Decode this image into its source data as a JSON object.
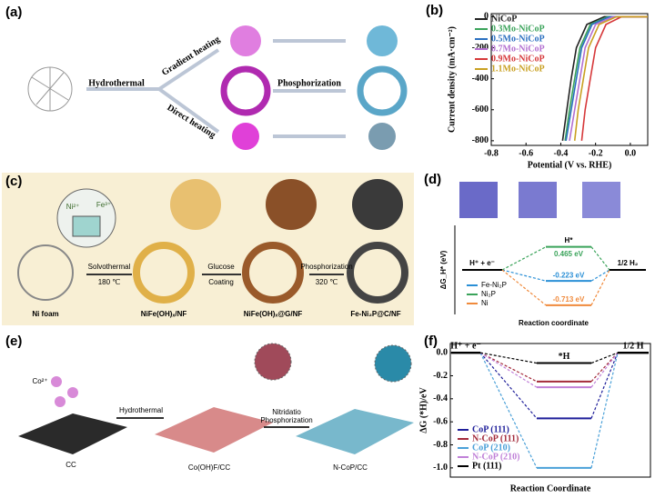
{
  "panels": {
    "a": {
      "label": "(a)",
      "step1": "Hydrothermal",
      "upper": "Gradient heating",
      "lower": "Direct heating",
      "step2": "Phosphorization"
    },
    "c": {
      "label": "(c)",
      "ion1": "Ni²⁺",
      "ion2": "Fe³⁺",
      "step1": "Solvothermal",
      "temp1": "180 ℃",
      "step2a": "Glucose",
      "step2b": "Coating",
      "step3": "Phosphorization",
      "temp3": "320 ℃",
      "names": [
        "Ni foam",
        "NiFe(OH)ₓ/NF",
        "NiFe(OH)ₓ@G/NF",
        "Fe-Ni₂P@C/NF"
      ]
    },
    "e": {
      "label": "(e)",
      "ion": "Co²⁺",
      "step1": "Hydrothermal",
      "step2a": "Nitridatio",
      "step2b": "Phosphorization",
      "names": [
        "CC",
        "Co(OH)F/CC",
        "N-CoP/CC"
      ]
    }
  },
  "chart_data": [
    {
      "type": "line",
      "panel_label": "(b)",
      "x_label": "Potential (V vs. RHE)",
      "y_label": "Current density (mA·cm⁻²)",
      "xlim": [
        -0.8,
        0.1
      ],
      "xticks": [
        -0.8,
        -0.6,
        -0.4,
        -0.2,
        {
          "value": 0,
          "label": "0.0"
        }
      ],
      "ylim": [
        -830,
        20
      ],
      "yticks": [
        0,
        -200,
        -400,
        -600,
        -800
      ],
      "legend": "upper left",
      "series": [
        {
          "name": "NiCoP",
          "color": "#222222",
          "x": [
            0.1,
            -0.15,
            -0.25,
            -0.31,
            -0.34,
            -0.365,
            -0.39
          ],
          "values": [
            0,
            0,
            -50,
            -200,
            -400,
            -600,
            -800
          ]
        },
        {
          "name": "0.3Mo-NiCoP",
          "color": "#3aa35a",
          "x": [
            0.1,
            -0.13,
            -0.23,
            -0.29,
            -0.32,
            -0.35,
            -0.375
          ],
          "values": [
            0,
            0,
            -50,
            -200,
            -400,
            -600,
            -800
          ]
        },
        {
          "name": "0.5Mo-NiCoP",
          "color": "#2a6fc0",
          "x": [
            0.1,
            -0.12,
            -0.22,
            -0.28,
            -0.31,
            -0.34,
            -0.37
          ],
          "values": [
            0,
            0,
            -50,
            -200,
            -400,
            -600,
            -800
          ]
        },
        {
          "name": "0.7Mo-NiCoP",
          "color": "#b36fd0",
          "x": [
            0.1,
            -0.1,
            -0.2,
            -0.26,
            -0.29,
            -0.32,
            -0.35
          ],
          "values": [
            0,
            0,
            -50,
            -200,
            -400,
            -600,
            -800
          ]
        },
        {
          "name": "0.9Mo-NiCoP",
          "color": "#d6383a",
          "x": [
            0.1,
            -0.05,
            -0.14,
            -0.2,
            -0.23,
            -0.26,
            -0.28
          ],
          "values": [
            0,
            0,
            -50,
            -200,
            -400,
            -600,
            -800
          ]
        },
        {
          "name": "1.1Mo-NiCoP",
          "color": "#c9a021",
          "x": [
            0.1,
            -0.08,
            -0.18,
            -0.24,
            -0.27,
            -0.3,
            -0.32
          ],
          "values": [
            0,
            0,
            -50,
            -200,
            -400,
            -600,
            -800
          ]
        }
      ]
    },
    {
      "type": "energy",
      "panel_label": "(d)",
      "x_label": "Reaction coordinate",
      "y_label": "ΔG_H* (eV)",
      "ylim": [
        -0.9,
        0.9
      ],
      "end_level_color": "#000000",
      "legend": "lower left",
      "categories": [
        "H⁺ + e⁻",
        "H*",
        "1/2 H₂"
      ],
      "series": [
        {
          "name": "Fe-Ni₂P",
          "color": "#2a8fd6",
          "values": [
            0,
            -0.223,
            0
          ],
          "value_labels": [
            null,
            "-0.223 eV",
            null
          ]
        },
        {
          "name": "Ni₂P",
          "color": "#3aa35a",
          "values": [
            0,
            0.465,
            0
          ],
          "value_labels": [
            null,
            "0.465 eV",
            null
          ]
        },
        {
          "name": "Ni",
          "color": "#f08a3c",
          "values": [
            0,
            -0.713,
            0
          ],
          "value_labels": [
            null,
            "-0.713 eV",
            null
          ]
        }
      ]
    },
    {
      "type": "energy",
      "panel_label": "(f)",
      "x_label": "Reaction Coordinate",
      "y_label": "ΔG (*H)/eV",
      "ylim": [
        -1.08,
        0.08
      ],
      "yticks": [
        {
          "value": 0,
          "label": "0.0"
        },
        -0.2,
        -0.4,
        -0.6,
        -0.8,
        {
          "value": -1,
          "label": "-1.0"
        }
      ],
      "end_level_color": "#000000",
      "legend": "lower left",
      "categories": [
        "H⁺ + e⁻",
        "*H",
        "1/2 H"
      ],
      "series": [
        {
          "name": "CoP (111)",
          "color": "#1f1f9a",
          "values": [
            0,
            -0.57,
            0
          ]
        },
        {
          "name": "N-CoP (111)",
          "color": "#a32a3a",
          "values": [
            0,
            -0.25,
            0
          ]
        },
        {
          "name": "CoP (210)",
          "color": "#4aa0d8",
          "values": [
            0,
            -1.0,
            0
          ]
        },
        {
          "name": "N-CoP (210)",
          "color": "#c080d8",
          "values": [
            0,
            -0.3,
            0
          ]
        },
        {
          "name": "Pt (111)",
          "color": "#000000",
          "values": [
            0,
            -0.09,
            0
          ]
        }
      ]
    }
  ]
}
